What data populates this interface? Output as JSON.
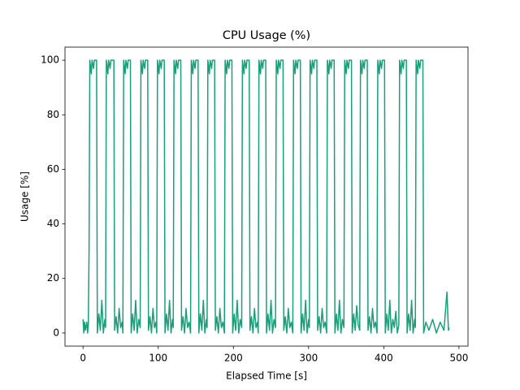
{
  "chart_data": {
    "type": "line",
    "title": "CPU Usage (%)",
    "x_label": "Elapsed Time [s]",
    "y_label": "Usage [%]",
    "series": [
      {
        "name": "CPU",
        "color": "#1b9e7a",
        "x": [
          0,
          1,
          2,
          3,
          5,
          6,
          7,
          8,
          9,
          11,
          12,
          14,
          15,
          18,
          19,
          21,
          23,
          25,
          27,
          29,
          30,
          31,
          33,
          34,
          36,
          37,
          41,
          42,
          44,
          46,
          48,
          50,
          52,
          53,
          54,
          56,
          57,
          59,
          60,
          63,
          64,
          66,
          68,
          70,
          72,
          74,
          76,
          77,
          79,
          80,
          82,
          83,
          86,
          87,
          89,
          91,
          93,
          95,
          97,
          98,
          99,
          101,
          102,
          104,
          105,
          108,
          109,
          111,
          113,
          115,
          117,
          119,
          120,
          121,
          123,
          124,
          126,
          127,
          130,
          131,
          133,
          135,
          137,
          139,
          141,
          143,
          144,
          146,
          147,
          149,
          150,
          153,
          154,
          156,
          158,
          160,
          162,
          164,
          165,
          166,
          168,
          169,
          171,
          172,
          175,
          176,
          178,
          180,
          182,
          184,
          186,
          188,
          189,
          191,
          192,
          194,
          195,
          198,
          199,
          201,
          203,
          205,
          207,
          209,
          211,
          212,
          214,
          215,
          217,
          218,
          221,
          222,
          224,
          226,
          228,
          230,
          232,
          233,
          234,
          236,
          237,
          239,
          240,
          243,
          244,
          246,
          248,
          250,
          252,
          254,
          256,
          257,
          259,
          260,
          262,
          263,
          266,
          267,
          269,
          271,
          273,
          275,
          277,
          279,
          280,
          282,
          283,
          285,
          286,
          289,
          290,
          292,
          294,
          296,
          298,
          300,
          301,
          302,
          304,
          305,
          307,
          308,
          311,
          312,
          314,
          316,
          318,
          320,
          322,
          324,
          325,
          327,
          328,
          330,
          331,
          334,
          335,
          337,
          339,
          341,
          343,
          345,
          347,
          348,
          350,
          351,
          353,
          354,
          357,
          358,
          360,
          362,
          364,
          366,
          368,
          369,
          371,
          372,
          374,
          375,
          378,
          379,
          381,
          383,
          385,
          387,
          389,
          391,
          392,
          394,
          395,
          397,
          398,
          401,
          402,
          404,
          406,
          408,
          410,
          412,
          414,
          416,
          418,
          420,
          421,
          423,
          424,
          426,
          427,
          430,
          431,
          433,
          435,
          437,
          439,
          441,
          442,
          443,
          445,
          446,
          448,
          449,
          452,
          453,
          456,
          460,
          465,
          470,
          475,
          480,
          484,
          486,
          487
        ],
        "values": [
          5,
          0,
          4,
          1,
          4,
          0,
          3,
          30,
          100,
          95,
          100,
          97,
          100,
          100,
          0,
          7,
          1,
          12,
          0,
          5,
          2,
          100,
          95,
          100,
          97,
          100,
          100,
          1,
          6,
          0,
          9,
          2,
          4,
          0,
          100,
          95,
          100,
          97,
          100,
          100,
          0,
          7,
          1,
          12,
          0,
          5,
          2,
          100,
          95,
          100,
          97,
          100,
          100,
          1,
          6,
          0,
          9,
          2,
          4,
          0,
          100,
          95,
          100,
          97,
          100,
          100,
          0,
          7,
          1,
          12,
          0,
          5,
          2,
          100,
          95,
          100,
          97,
          100,
          100,
          1,
          6,
          0,
          9,
          2,
          4,
          0,
          100,
          95,
          100,
          97,
          100,
          100,
          0,
          7,
          1,
          12,
          0,
          5,
          2,
          100,
          95,
          100,
          97,
          100,
          100,
          1,
          6,
          0,
          9,
          2,
          4,
          0,
          100,
          95,
          100,
          97,
          100,
          100,
          0,
          7,
          1,
          12,
          0,
          5,
          2,
          100,
          95,
          100,
          97,
          100,
          100,
          1,
          6,
          0,
          9,
          2,
          4,
          0,
          100,
          95,
          100,
          97,
          100,
          100,
          0,
          7,
          1,
          12,
          0,
          5,
          2,
          100,
          95,
          100,
          97,
          100,
          100,
          1,
          6,
          0,
          9,
          2,
          4,
          0,
          100,
          95,
          100,
          97,
          100,
          100,
          0,
          7,
          1,
          12,
          0,
          5,
          2,
          100,
          95,
          100,
          97,
          100,
          100,
          1,
          6,
          0,
          9,
          2,
          4,
          0,
          100,
          95,
          100,
          97,
          100,
          100,
          0,
          7,
          1,
          12,
          0,
          5,
          2,
          100,
          95,
          100,
          97,
          100,
          100,
          0,
          7,
          1,
          10,
          3,
          1,
          100,
          95,
          100,
          97,
          100,
          100,
          1,
          6,
          0,
          9,
          2,
          4,
          0,
          100,
          95,
          100,
          97,
          100,
          100,
          0,
          7,
          1,
          12,
          0,
          5,
          2,
          8,
          0,
          3,
          100,
          95,
          100,
          97,
          100,
          100,
          0,
          7,
          1,
          12,
          0,
          5,
          2,
          100,
          95,
          100,
          97,
          100,
          100,
          0,
          4,
          1,
          5,
          0,
          4,
          1,
          15,
          1,
          2
        ]
      }
    ],
    "xlim": [
      -24,
      512
    ],
    "ylim": [
      -4.8,
      104.8
    ],
    "xticks": [
      0,
      100,
      200,
      300,
      400,
      500
    ],
    "yticks": [
      0,
      20,
      40,
      60,
      80,
      100
    ]
  }
}
